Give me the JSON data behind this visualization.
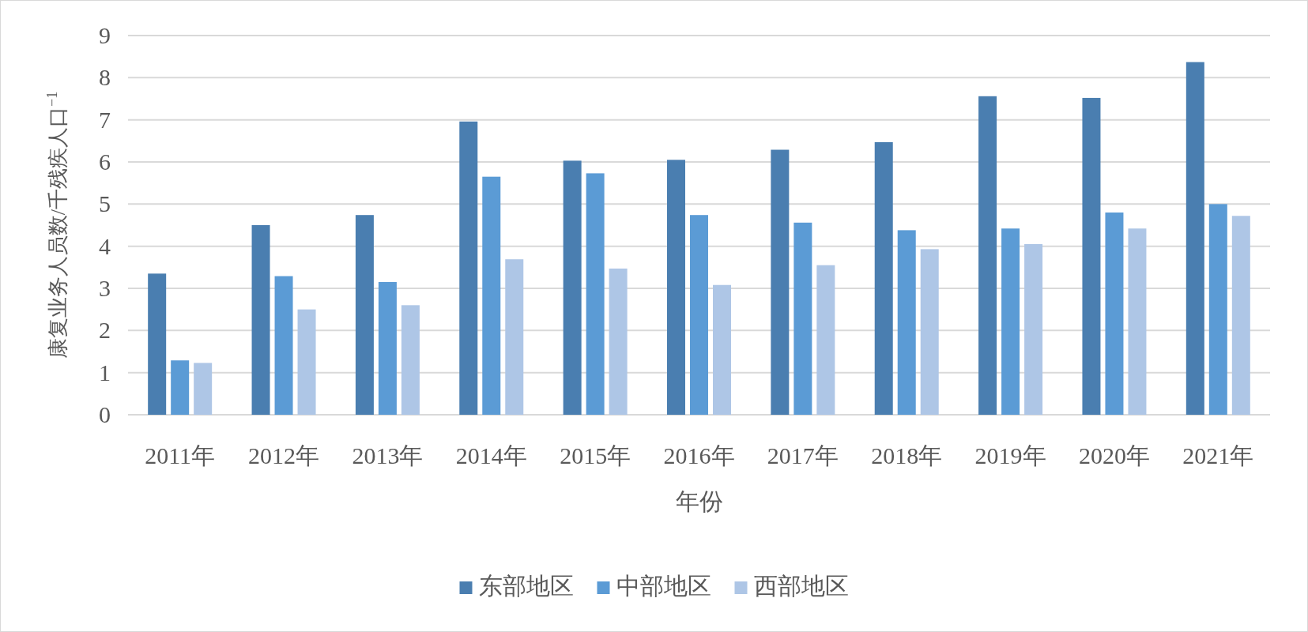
{
  "chart_data": {
    "type": "bar",
    "ylabel": "康复业务人员数/千残疾人口$^{−1}$",
    "xlabel": "年份",
    "categories": [
      "2011年",
      "2012年",
      "2013年",
      "2014年",
      "2015年",
      "2016年",
      "2017年",
      "2018年",
      "2019年",
      "2020年",
      "2021年"
    ],
    "series": [
      {
        "name": "东部地区",
        "color": "#4a7eb0",
        "values": [
          3.35,
          4.5,
          4.74,
          6.96,
          6.03,
          6.05,
          6.29,
          6.47,
          7.56,
          7.52,
          8.37
        ]
      },
      {
        "name": "中部地区",
        "color": "#5b9bd5",
        "values": [
          1.29,
          3.29,
          3.15,
          5.65,
          5.73,
          4.74,
          4.56,
          4.38,
          4.42,
          4.8,
          5.0
        ]
      },
      {
        "name": "西部地区",
        "color": "#aec6e6",
        "values": [
          1.23,
          2.5,
          2.6,
          3.69,
          3.47,
          3.08,
          3.55,
          3.93,
          4.05,
          4.42,
          4.72
        ]
      }
    ],
    "ylim": [
      0,
      9
    ],
    "yticks": [
      0,
      1,
      2,
      3,
      4,
      5,
      6,
      7,
      8,
      9
    ],
    "grid": "y",
    "legend": "bottom"
  }
}
